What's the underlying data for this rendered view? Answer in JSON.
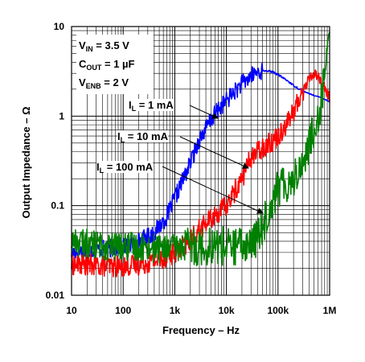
{
  "chart_data": {
    "type": "line",
    "xlabel": "Frequency – Hz",
    "ylabel": "Output Impedance – Ω",
    "xscale": "log",
    "yscale": "log",
    "xlim": [
      10,
      1000000
    ],
    "ylim": [
      0.01,
      10
    ],
    "grid": true,
    "x_ticks": [
      10,
      100,
      1000,
      10000,
      100000,
      1000000
    ],
    "x_tick_labels": [
      "10",
      "100",
      "1k",
      "10k",
      "100k",
      "1M"
    ],
    "y_ticks": [
      0.01,
      0.1,
      1,
      10
    ],
    "y_tick_labels": [
      "0.01",
      "0.1",
      "1",
      "10"
    ],
    "conditions": [
      {
        "main": "V",
        "sub": "IN",
        "rest": " = 3.5 V"
      },
      {
        "main": "C",
        "sub": "OUT",
        "rest": " = 1 µF"
      },
      {
        "main": "V",
        "sub": "ENB",
        "rest": " = 2 V"
      }
    ],
    "series": [
      {
        "label_main": "I",
        "label_sub": "L",
        "label_rest": " = 1 mA",
        "color": "#0000ff",
        "x": [
          10,
          20,
          50,
          100,
          200,
          400,
          700,
          1000,
          2000,
          3000,
          5000,
          7000,
          10000,
          20000,
          30000,
          40000,
          50000,
          60000,
          70000,
          80000,
          100000,
          150000,
          200000,
          300000,
          500000,
          700000,
          1000000
        ],
        "y": [
          0.03,
          0.032,
          0.033,
          0.035,
          0.04,
          0.05,
          0.075,
          0.12,
          0.3,
          0.55,
          0.9,
          1.2,
          1.5,
          2.3,
          2.8,
          3.1,
          3.2,
          3.2,
          3.15,
          3.1,
          2.9,
          2.5,
          2.2,
          1.9,
          1.7,
          1.6,
          1.45
        ]
      },
      {
        "label_main": "I",
        "label_sub": "L",
        "label_rest": " = 10 mA",
        "color": "#ff0000",
        "x": [
          10,
          20,
          50,
          100,
          200,
          500,
          1000,
          2000,
          3000,
          5000,
          10000,
          20000,
          30000,
          50000,
          70000,
          100000,
          150000,
          200000,
          300000,
          400000,
          500000,
          600000,
          700000,
          1000000
        ],
        "y": [
          0.022,
          0.022,
          0.021,
          0.021,
          0.022,
          0.025,
          0.03,
          0.04,
          0.055,
          0.07,
          0.1,
          0.2,
          0.35,
          0.45,
          0.5,
          0.6,
          0.85,
          1.1,
          1.9,
          2.6,
          3.0,
          2.8,
          2.3,
          1.6
        ]
      },
      {
        "label_main": "I",
        "label_sub": "L",
        "label_rest": " = 100 mA",
        "color": "#008000",
        "x": [
          10,
          20,
          50,
          100,
          200,
          500,
          1000,
          2000,
          5000,
          10000,
          20000,
          30000,
          40000,
          50000,
          70000,
          100000,
          150000,
          200000,
          300000,
          500000,
          700000,
          800000,
          1000000
        ],
        "y": [
          0.04,
          0.038,
          0.035,
          0.035,
          0.035,
          0.033,
          0.034,
          0.035,
          0.036,
          0.035,
          0.035,
          0.038,
          0.045,
          0.06,
          0.1,
          0.16,
          0.18,
          0.2,
          0.3,
          0.7,
          1.5,
          3.0,
          10
        ]
      }
    ]
  }
}
